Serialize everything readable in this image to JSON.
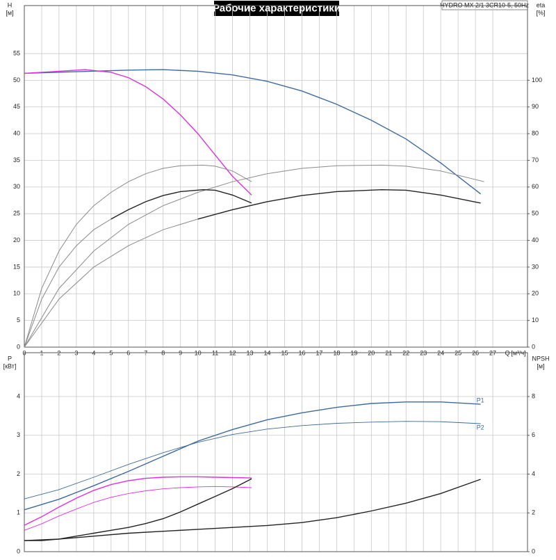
{
  "title": "Рабочие характеристики",
  "model": "HYDRO MX 2/1 3CR10-5, 50Hz",
  "chart_data": [
    {
      "type": "line",
      "xlabel": "Q",
      "xunit": "[м³/ч]",
      "ylabel": "H",
      "yunit": "[м]",
      "y2label": "eta",
      "y2unit": "[%]",
      "xlim": [
        0,
        29
      ],
      "xticks": [
        0,
        1,
        2,
        3,
        4,
        5,
        6,
        7,
        8,
        9,
        10,
        11,
        12,
        13,
        14,
        15,
        16,
        17,
        18,
        19,
        20,
        21,
        22,
        23,
        24,
        25,
        26,
        27
      ],
      "xtick_labels": true,
      "ylim": [
        0,
        64
      ],
      "yticks": [
        0,
        5,
        10,
        15,
        20,
        25,
        30,
        35,
        40,
        45,
        50,
        55
      ],
      "y2lim": [
        0,
        128
      ],
      "y2ticks": [
        0,
        10,
        20,
        30,
        40,
        50,
        60,
        70,
        80,
        90,
        100
      ],
      "grid": true,
      "series": [
        {
          "color": "#3d6a9e",
          "width": 1.4,
          "x": [
            0,
            3,
            6,
            8,
            10,
            12,
            14,
            16,
            18,
            20,
            22,
            24,
            26.3
          ],
          "values": [
            51.3,
            51.6,
            51.9,
            52,
            51.7,
            51,
            49.8,
            48,
            45.5,
            42.5,
            39,
            34.5,
            28.7
          ]
        },
        {
          "color": "#e030e0",
          "width": 1.4,
          "x": [
            0,
            2,
            3.5,
            5,
            6,
            7,
            8,
            9,
            10,
            11,
            12,
            13.1
          ],
          "values": [
            51.3,
            51.7,
            52,
            51.5,
            50.5,
            48.8,
            46.5,
            43.5,
            40,
            36,
            32,
            28.5
          ]
        },
        {
          "color": "#8a8a8a",
          "width": 1,
          "axis": "y2",
          "x": [
            0,
            1,
            2,
            3,
            4,
            5,
            6,
            7,
            8,
            9,
            10.3,
            11,
            12,
            13.1
          ],
          "values": [
            0,
            22,
            36,
            46,
            53,
            58,
            62,
            65,
            67,
            68,
            68.2,
            67.8,
            66,
            62
          ]
        },
        {
          "color": "#8a8a8a",
          "width": 1,
          "axis": "y2",
          "x": [
            0,
            2,
            4,
            6,
            8,
            10,
            12,
            14,
            16,
            18,
            20.6,
            22,
            24,
            26.5
          ],
          "values": [
            0,
            22,
            36,
            46,
            53,
            58,
            62,
            65,
            67,
            68,
            68.2,
            67.8,
            66,
            62
          ]
        },
        {
          "color": "#8a8a8a",
          "width": 1,
          "axis": "y2",
          "x": [
            0,
            1,
            2,
            3,
            4,
            5
          ],
          "values": [
            0,
            18,
            30,
            38,
            44,
            48
          ]
        },
        {
          "color": "#222222",
          "width": 1.4,
          "axis": "y2",
          "x": [
            5,
            6,
            7,
            8,
            9,
            10.3,
            11,
            12,
            13.1
          ],
          "values": [
            48,
            51.5,
            54.5,
            56.8,
            58.3,
            59,
            58.8,
            57,
            54
          ]
        },
        {
          "color": "#8a8a8a",
          "width": 1,
          "axis": "y2",
          "x": [
            0,
            2,
            4,
            6,
            8,
            10
          ],
          "values": [
            0,
            18,
            30,
            38,
            44,
            48
          ]
        },
        {
          "color": "#222222",
          "width": 1.4,
          "axis": "y2",
          "x": [
            10,
            12,
            14,
            16,
            18,
            20.6,
            22,
            24,
            26.3
          ],
          "values": [
            48,
            51.5,
            54.5,
            56.8,
            58.3,
            59,
            58.8,
            57,
            54
          ]
        }
      ]
    },
    {
      "type": "line",
      "ylabel": "P",
      "yunit": "[кВт]",
      "y2label": "NPSH",
      "y2unit": "[м]",
      "xlim": [
        0,
        29
      ],
      "xticks": [
        0,
        1,
        2,
        3,
        4,
        5,
        6,
        7,
        8,
        9,
        10,
        11,
        12,
        13,
        14,
        15,
        16,
        17,
        18,
        19,
        20,
        21,
        22,
        23,
        24,
        25,
        26,
        27
      ],
      "xtick_labels": false,
      "ylim": [
        0,
        5.13
      ],
      "yticks": [
        0,
        1,
        2,
        3,
        4
      ],
      "y2lim": [
        0,
        10.26
      ],
      "y2ticks": [
        0,
        2,
        4,
        6,
        8
      ],
      "grid": true,
      "series": [
        {
          "name": "P1",
          "color": "#3d6a9e",
          "width": 1.4,
          "x": [
            0,
            2,
            4,
            6,
            8,
            10,
            12,
            14,
            16,
            18,
            20,
            22,
            24,
            26.3
          ],
          "values": [
            1.08,
            1.35,
            1.7,
            2.07,
            2.46,
            2.85,
            3.15,
            3.4,
            3.58,
            3.72,
            3.82,
            3.86,
            3.86,
            3.8
          ]
        },
        {
          "name": "P2",
          "color": "#3d6a9e",
          "width": 0.9,
          "x": [
            0,
            2,
            4,
            6,
            8,
            10,
            12,
            14,
            16,
            18,
            20,
            22,
            24,
            26.3
          ],
          "values": [
            1.36,
            1.6,
            1.92,
            2.25,
            2.55,
            2.82,
            3.02,
            3.16,
            3.25,
            3.31,
            3.34,
            3.36,
            3.35,
            3.3
          ]
        },
        {
          "color": "#e030e0",
          "width": 1.4,
          "x": [
            0,
            1,
            2,
            3,
            4,
            5,
            6,
            7,
            8,
            9,
            10,
            11,
            12,
            13.1
          ],
          "values": [
            0.68,
            0.9,
            1.15,
            1.38,
            1.58,
            1.73,
            1.83,
            1.89,
            1.92,
            1.93,
            1.93,
            1.92,
            1.91,
            1.9
          ]
        },
        {
          "color": "#e030e0",
          "width": 0.9,
          "x": [
            0,
            1,
            2,
            3,
            4,
            5,
            6,
            7,
            8,
            9,
            10,
            11,
            12,
            13.1
          ],
          "values": [
            0.55,
            0.72,
            0.92,
            1.1,
            1.27,
            1.4,
            1.5,
            1.57,
            1.62,
            1.65,
            1.67,
            1.68,
            1.67,
            1.65
          ]
        },
        {
          "color": "#222222",
          "width": 1.4,
          "axis": "y2",
          "x": [
            0,
            1,
            2,
            3,
            4,
            5,
            6,
            7,
            8,
            9,
            10,
            11,
            12,
            13.1
          ],
          "values": [
            0.57,
            0.57,
            0.65,
            0.8,
            0.95,
            1.1,
            1.25,
            1.45,
            1.7,
            2.05,
            2.45,
            2.85,
            3.25,
            3.76
          ]
        },
        {
          "color": "#222222",
          "width": 1.4,
          "axis": "y2",
          "x": [
            0,
            2,
            4,
            6,
            8,
            10,
            12,
            14,
            16,
            18,
            20,
            22,
            24,
            26.3
          ],
          "values": [
            0.57,
            0.65,
            0.8,
            0.95,
            1.05,
            1.15,
            1.25,
            1.35,
            1.5,
            1.75,
            2.1,
            2.5,
            3.0,
            3.73
          ]
        }
      ]
    }
  ]
}
